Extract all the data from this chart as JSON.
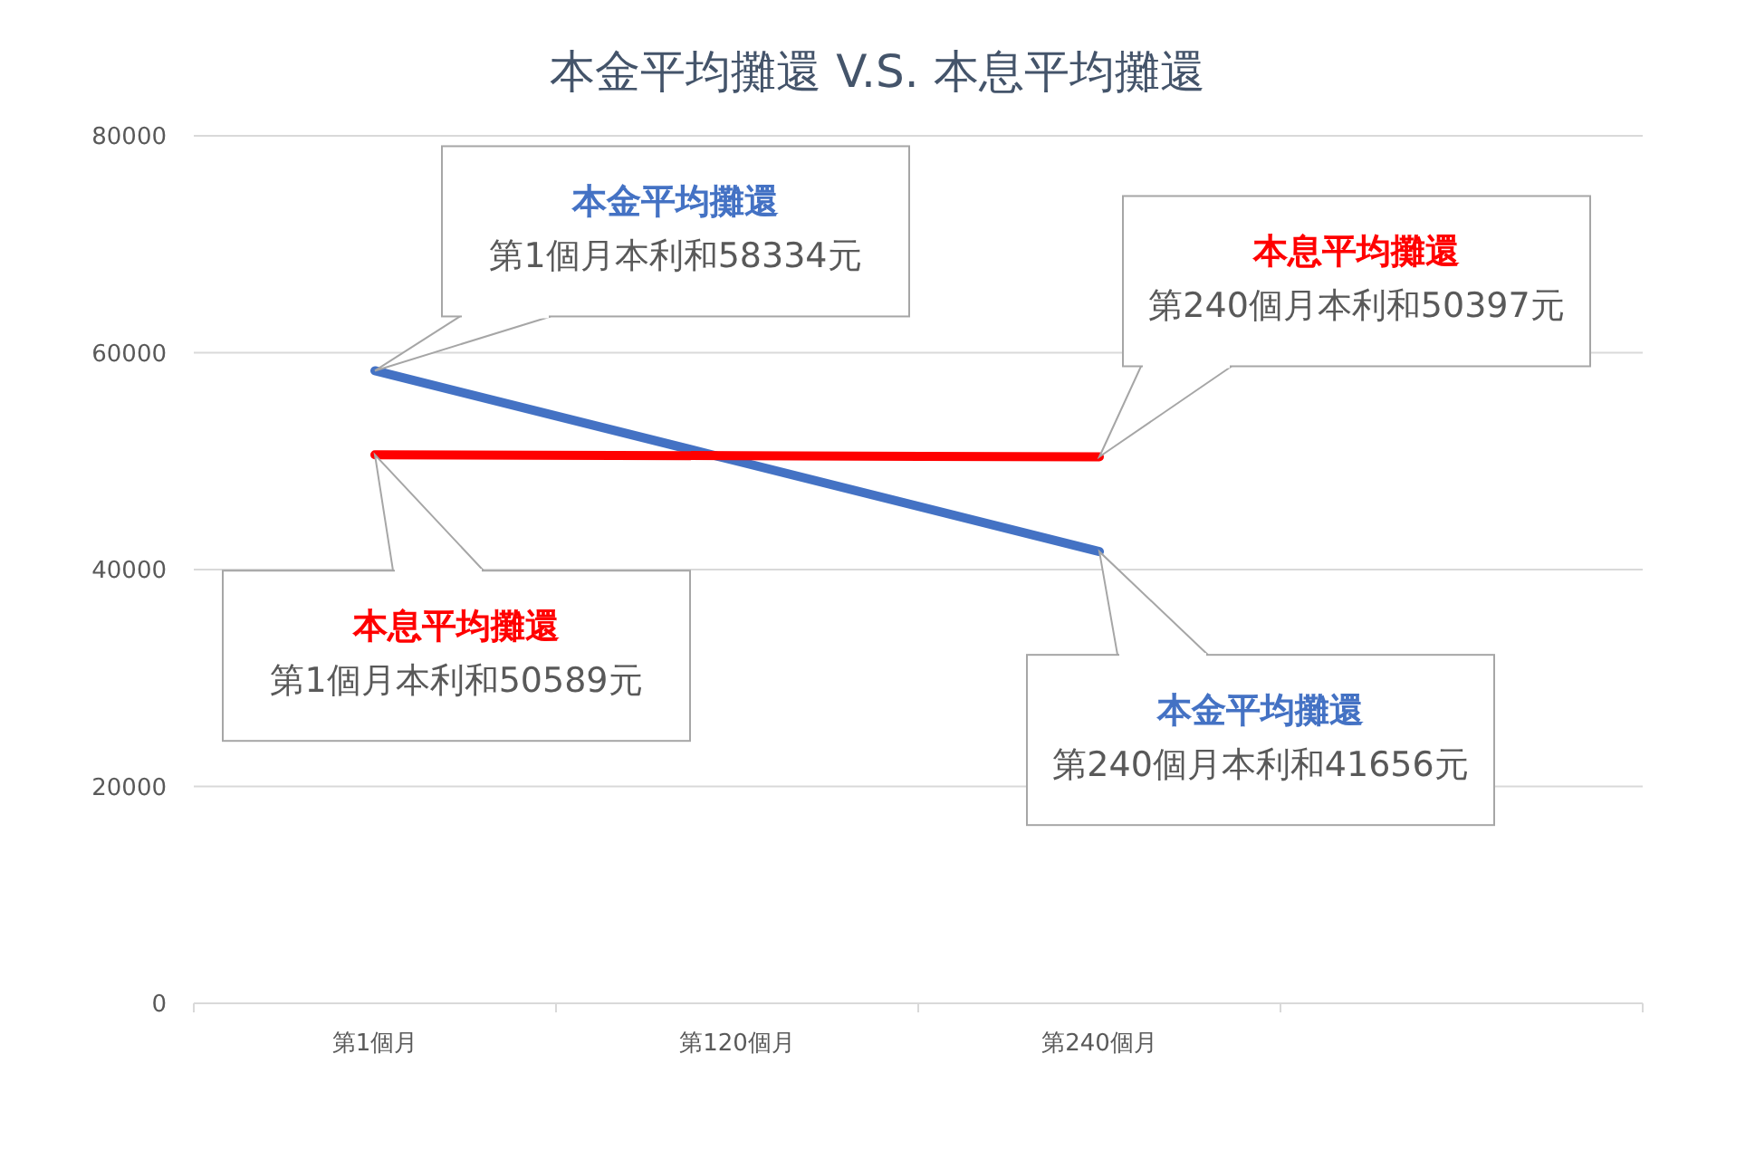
{
  "chart_data": {
    "type": "line",
    "title": "本金平均攤還 V.S. 本息平均攤還",
    "categories": [
      "第1個月",
      "第120個月",
      "第240個月",
      null
    ],
    "series": [
      {
        "name": "本金平均攤還",
        "color": "#4472c4",
        "values": [
          58334,
          50000,
          41656,
          null
        ]
      },
      {
        "name": "本息平均攤還",
        "color": "#ff0000",
        "values": [
          50589,
          50500,
          50397,
          null
        ]
      }
    ],
    "ylim": [
      0,
      80000
    ],
    "yticks": [
      0,
      20000,
      40000,
      60000,
      80000
    ],
    "grid": "y",
    "legend": false,
    "marker": "none",
    "line_style": "solid",
    "annotations": [
      "第1個月本利和58334元",
      "第240個月本利和50397元",
      "第1個月本利和50589元",
      "第240個月本利和41656元"
    ]
  }
}
